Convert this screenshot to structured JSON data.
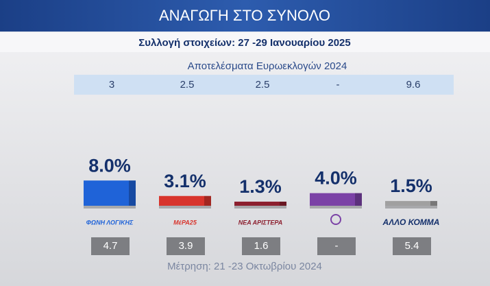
{
  "chart_data": {
    "type": "bar",
    "title": "ΑΝΑΓΩΓΗ ΣΤΟ ΣΥΝΟΛΟ",
    "subtitle": "Συλλογή στοιχείων: 27 -29 Ιανουαρίου 2025",
    "reference_title": "Αποτελέσματα Ευρωεκλογών 2024",
    "reference_values": [
      3,
      2.5,
      2.5,
      "-",
      9.6
    ],
    "categories": [
      "ΦΩΝΗ ΛΟΓΙΚΗΣ",
      "ΜέΡΑ25",
      "ΝΕΑ ΑΡΙΣΤΕΡΑ",
      null,
      "ΑΛΛΟ ΚΟΜΜΑ"
    ],
    "values": [
      8.0,
      3.1,
      1.3,
      4.0,
      1.5
    ],
    "value_labels": [
      "8.0%",
      "3.1%",
      "1.3%",
      "4.0%",
      "1.5%"
    ],
    "colors": [
      "#1f63d8",
      "#d8342c",
      "#8c1f2e",
      "#7b42a6",
      "#a0a0a0"
    ],
    "previous_values": [
      4.7,
      3.9,
      1.6,
      "-",
      5.4
    ],
    "previous_title": "Μέτρηση: 21 -23 Οκτωβρίου 2024"
  }
}
